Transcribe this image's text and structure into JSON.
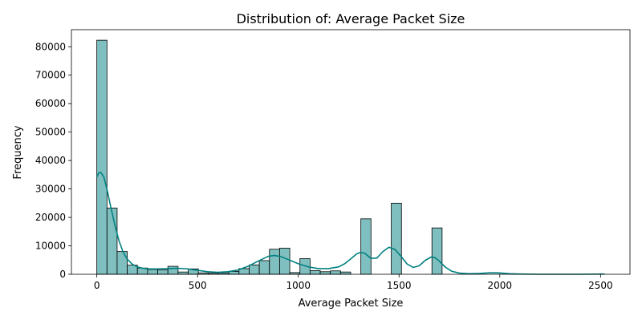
{
  "chart_data": {
    "type": "bar",
    "title": "Distribution of: Average Packet Size",
    "xlabel": "Average Packet Size",
    "ylabel": "Frequency",
    "xlim": [
      -126,
      2646
    ],
    "ylim": [
      0,
      86000
    ],
    "x_ticks": [
      0,
      500,
      1000,
      1500,
      2000,
      2500
    ],
    "y_ticks": [
      0,
      10000,
      20000,
      30000,
      40000,
      50000,
      60000,
      70000,
      80000
    ],
    "grid": false,
    "bin_width": 50.4,
    "bins": [
      {
        "x0": 0,
        "count": 82300
      },
      {
        "x0": 50.4,
        "count": 23300
      },
      {
        "x0": 100.8,
        "count": 8000
      },
      {
        "x0": 151.2,
        "count": 3200
      },
      {
        "x0": 201.6,
        "count": 2200
      },
      {
        "x0": 252,
        "count": 1700
      },
      {
        "x0": 302.4,
        "count": 1500
      },
      {
        "x0": 352.8,
        "count": 2800
      },
      {
        "x0": 403.2,
        "count": 800
      },
      {
        "x0": 453.6,
        "count": 1900
      },
      {
        "x0": 504,
        "count": 500
      },
      {
        "x0": 554.4,
        "count": 400
      },
      {
        "x0": 604.8,
        "count": 500
      },
      {
        "x0": 655.2,
        "count": 1000
      },
      {
        "x0": 705.6,
        "count": 2000
      },
      {
        "x0": 756,
        "count": 3300
      },
      {
        "x0": 806.4,
        "count": 4800
      },
      {
        "x0": 856.8,
        "count": 8800
      },
      {
        "x0": 907.2,
        "count": 9200
      },
      {
        "x0": 957.6,
        "count": 600
      },
      {
        "x0": 1008,
        "count": 5500
      },
      {
        "x0": 1058.4,
        "count": 1300
      },
      {
        "x0": 1108.8,
        "count": 900
      },
      {
        "x0": 1159.2,
        "count": 1200
      },
      {
        "x0": 1209.6,
        "count": 800
      },
      {
        "x0": 1260,
        "count": 0
      },
      {
        "x0": 1310.4,
        "count": 19500
      },
      {
        "x0": 1360.8,
        "count": 0
      },
      {
        "x0": 1411.2,
        "count": 0
      },
      {
        "x0": 1461.6,
        "count": 25000
      },
      {
        "x0": 1512,
        "count": 0
      },
      {
        "x0": 1562.4,
        "count": 0
      },
      {
        "x0": 1612.8,
        "count": 0
      },
      {
        "x0": 1663.2,
        "count": 16300
      }
    ],
    "kde": {
      "x": [
        0,
        10,
        20,
        35,
        50,
        70,
        90,
        110,
        130,
        150,
        175,
        200,
        230,
        260,
        300,
        350,
        400,
        450,
        500,
        550,
        600,
        650,
        700,
        750,
        800,
        850,
        880,
        910,
        950,
        1000,
        1050,
        1100,
        1150,
        1200,
        1230,
        1260,
        1290,
        1310,
        1330,
        1360,
        1390,
        1420,
        1450,
        1480,
        1510,
        1540,
        1570,
        1600,
        1630,
        1660,
        1680,
        1700,
        1730,
        1760,
        1800,
        1850,
        1900,
        1950,
        1990,
        2050,
        2100,
        2200,
        2300,
        2400,
        2520
      ],
      "y": [
        34200,
        35700,
        35800,
        34200,
        30000,
        23400,
        17200,
        11800,
        7900,
        5400,
        3600,
        2600,
        2100,
        1900,
        1900,
        2000,
        2100,
        1900,
        1400,
        900,
        700,
        900,
        1500,
        2800,
        4600,
        6300,
        6600,
        6300,
        5200,
        3700,
        2600,
        2000,
        2000,
        2600,
        3700,
        5400,
        7200,
        7700,
        7400,
        5600,
        5700,
        8000,
        9500,
        8700,
        6300,
        3600,
        2400,
        3000,
        4900,
        6100,
        5800,
        4600,
        2500,
        1100,
        400,
        200,
        300,
        500,
        500,
        200,
        100,
        0,
        0,
        0,
        100
      ]
    },
    "colors": {
      "bar_fill": "#7fbfbf",
      "bar_edge": "#000000",
      "kde_line": "#008080"
    }
  }
}
